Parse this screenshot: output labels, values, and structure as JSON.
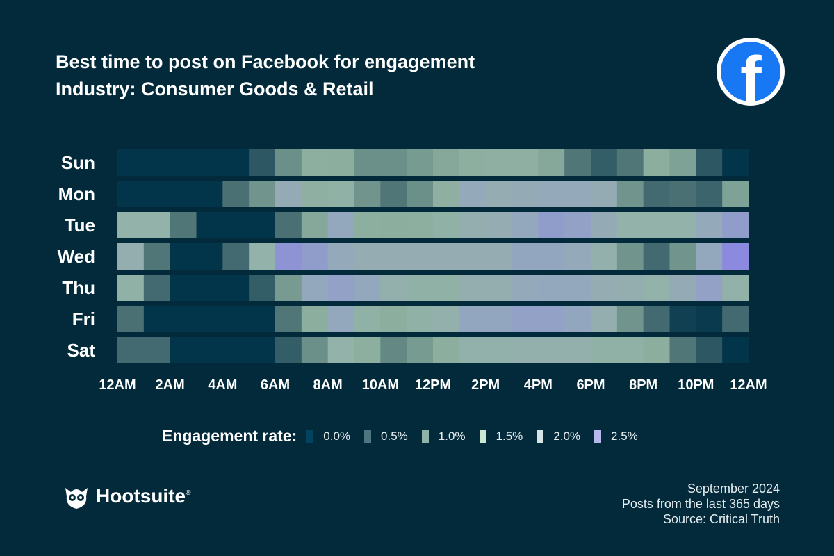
{
  "title": "Best time to post on Facebook for engagement",
  "subtitle": "Industry: Consumer Goods & Retail",
  "logo_text": "Hootsuite",
  "footer": [
    "September 2024",
    "Posts from the last 365 days",
    "Source: Critical Truth"
  ],
  "icons": {
    "top_right": "facebook-logo",
    "bottom_left": "hootsuite-owl-logo"
  },
  "background_color": "#022a3b",
  "chart_data": {
    "type": "heatmap",
    "title": "Best time to post on Facebook for engagement",
    "subtitle": "Industry: Consumer Goods & Retail",
    "rows": [
      "Sun",
      "Mon",
      "Tue",
      "Wed",
      "Thu",
      "Fri",
      "Sat"
    ],
    "columns_hours": 24,
    "x_tick_labels": [
      "12AM",
      "2AM",
      "4AM",
      "6AM",
      "8AM",
      "10AM",
      "12PM",
      "2PM",
      "4PM",
      "6PM",
      "8PM",
      "10PM",
      "12AM"
    ],
    "legend": {
      "title": "Engagement rate:",
      "position": "bottom",
      "items": [
        {
          "label": "0.0%",
          "value": 0.0,
          "color": "#02445e"
        },
        {
          "label": "0.5%",
          "value": 0.5,
          "color": "#4d7680"
        },
        {
          "label": "1.0%",
          "value": 1.0,
          "color": "#8fb3a8"
        },
        {
          "label": "1.5%",
          "value": 1.5,
          "color": "#cce8d2"
        },
        {
          "label": "2.0%",
          "value": 2.0,
          "color": "#d5e4e6"
        },
        {
          "label": "2.5%",
          "value": 2.5,
          "color": "#b9b8ec"
        }
      ]
    },
    "unit": "%",
    "values": [
      [
        0,
        0,
        0,
        0,
        0,
        0.3,
        0.75,
        1.05,
        1.0,
        0.75,
        0.75,
        0.85,
        0.95,
        1.05,
        1.1,
        1.1,
        0.95,
        0.55,
        0.35,
        0.55,
        1.0,
        0.9,
        0.3,
        0
      ],
      [
        0,
        0,
        0,
        0,
        0.5,
        0.8,
        1.7,
        1.1,
        1.2,
        0.8,
        0.55,
        0.75,
        1.1,
        1.8,
        1.6,
        1.7,
        1.8,
        1.8,
        1.65,
        0.8,
        0.45,
        0.5,
        0.4,
        0.9
      ],
      [
        1.3,
        1.3,
        0.55,
        0,
        0,
        0,
        0.5,
        0.95,
        1.9,
        1.05,
        1.0,
        1.05,
        1.2,
        1.5,
        1.6,
        1.9,
        2.2,
        2.1,
        1.7,
        1.3,
        1.3,
        1.3,
        1.8,
        2.2
      ],
      [
        1.5,
        0.55,
        0,
        0,
        0.45,
        1.3,
        2.4,
        2.2,
        1.8,
        1.6,
        1.6,
        1.6,
        1.6,
        1.6,
        1.6,
        2.0,
        2.0,
        1.8,
        1.4,
        0.8,
        0.45,
        0.8,
        1.9,
        2.6
      ],
      [
        1.2,
        0.45,
        0,
        0,
        0,
        0.35,
        0.85,
        1.9,
        2.1,
        1.9,
        1.4,
        1.2,
        1.2,
        1.5,
        1.5,
        1.8,
        1.9,
        1.9,
        1.6,
        1.5,
        1.3,
        1.7,
        2.1,
        1.25
      ],
      [
        0.5,
        0,
        0,
        0,
        0,
        0,
        0.55,
        1.0,
        1.9,
        1.2,
        1.0,
        1.2,
        1.4,
        2.0,
        2.0,
        2.1,
        2.1,
        2.0,
        1.5,
        0.8,
        0.45,
        0.1,
        0.05,
        0.45
      ],
      [
        0.45,
        0.45,
        0,
        0,
        0,
        0,
        0.35,
        0.75,
        1.3,
        1.05,
        0.7,
        0.85,
        1.0,
        1.35,
        1.35,
        1.4,
        1.4,
        1.4,
        1.2,
        1.2,
        1.0,
        0.55,
        0.3,
        0
      ]
    ]
  }
}
